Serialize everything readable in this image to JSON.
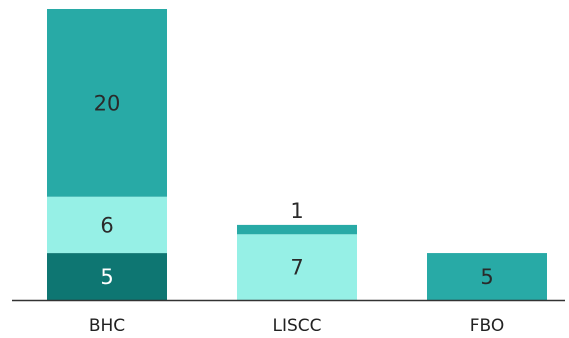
{
  "chart_data": {
    "type": "bar",
    "stacked": true,
    "categories": [
      "BHC",
      "LISCC",
      "FBO"
    ],
    "series": [
      {
        "values": [
          5,
          0,
          0
        ],
        "color": "#0e7672",
        "label_color": "#ffffff"
      },
      {
        "values": [
          6,
          7,
          0
        ],
        "color": "#96f0e6",
        "label_color": "#2a2a2a"
      },
      {
        "values": [
          20,
          1,
          5
        ],
        "color": "#28aaa6",
        "label_color": "#2a2a2a"
      }
    ],
    "title": "",
    "xlabel": "",
    "ylabel": "",
    "ylim": [
      0,
      31
    ],
    "grid": false,
    "legend": "none"
  }
}
